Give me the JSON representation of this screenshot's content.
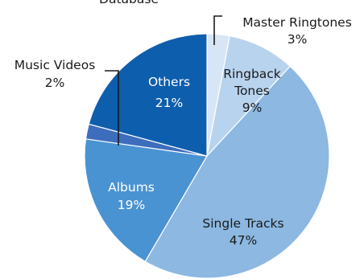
{
  "chart_data": {
    "type": "pie",
    "title": "Database",
    "slices": [
      {
        "name": "Master Ringtones",
        "value": 3,
        "label": "3%",
        "color": "#d6e6f6"
      },
      {
        "name": "Ringback Tones",
        "value": 9,
        "label": "9%",
        "color": "#b8d3ee"
      },
      {
        "name": "Single Tracks",
        "value": 47,
        "label": "47%",
        "color": "#8cb8e2"
      },
      {
        "name": "Albums",
        "value": 19,
        "label": "19%",
        "color": "#4a93d3"
      },
      {
        "name": "Music Videos",
        "value": 2,
        "label": "2%",
        "color": "#3d6dbd"
      },
      {
        "name": "Others",
        "value": 21,
        "label": "21%",
        "color": "#0e5eae"
      }
    ],
    "label_lines": {
      "master_ringtones": [
        "Master Ringtones",
        "3%"
      ],
      "ringback_tones": [
        "Ringback",
        "Tones",
        "9%"
      ],
      "single_tracks": [
        "Single Tracks",
        "47%"
      ],
      "albums": [
        "Albums",
        "19%"
      ],
      "music_videos": [
        "Music Videos",
        "2%"
      ],
      "others": [
        "Others",
        "21%"
      ]
    },
    "label_colors": {
      "dark": "#1a1a1a",
      "light": "#ffffff"
    }
  }
}
